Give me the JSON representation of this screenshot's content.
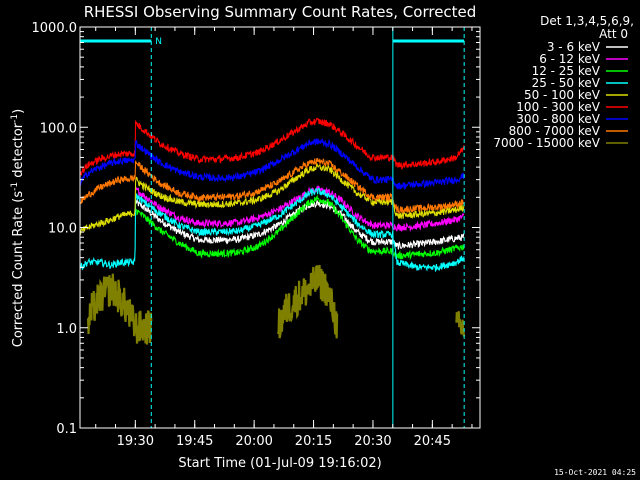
{
  "chart_data": {
    "type": "line",
    "title": "RHESSI Observing Summary Count Rates, Corrected",
    "xlabel": "Start Time (01-Jul-09 19:16:02)",
    "ylabel_main": "Corrected Count Rate (s",
    "ylabel_sup1": "-1",
    "ylabel_mid": " detector",
    "ylabel_sup2": "-1",
    "ylabel_end": ")",
    "yscale": "log",
    "ylim": [
      0.1,
      1000
    ],
    "xlim_minutes": [
      0,
      101
    ],
    "x_unit": "minutes since 19:16:02",
    "yticks": [
      {
        "v": 1000,
        "label": "1000.0"
      },
      {
        "v": 100,
        "label": "100.0"
      },
      {
        "v": 10,
        "label": "10.0"
      },
      {
        "v": 1,
        "label": "1.0"
      },
      {
        "v": 0.1,
        "label": "0.1"
      }
    ],
    "xticks": [
      {
        "m": 13.97,
        "label": "19:30"
      },
      {
        "m": 28.97,
        "label": "19:45"
      },
      {
        "m": 43.97,
        "label": "20:00"
      },
      {
        "m": 58.97,
        "label": "20:15"
      },
      {
        "m": 73.97,
        "label": "20:30"
      },
      {
        "m": 88.97,
        "label": "20:45"
      }
    ],
    "legend_title_1": "Det 1,3,4,5,6,9,",
    "legend_title_2": "Att 0",
    "legend_placement": "right",
    "grid": false,
    "flag_label": "N",
    "flags": [
      {
        "name": "N",
        "start": 0,
        "end": 18,
        "color": "#00ffff"
      },
      {
        "name": "",
        "start": 79,
        "end": 97,
        "color": "#00ffff"
      }
    ],
    "vlines_dashed": [
      18,
      97
    ],
    "vlines_solid": [
      0,
      79
    ],
    "series": [
      {
        "name": "3 - 6 keV",
        "color": "#ffffff",
        "x": [
          0,
          5,
          10,
          13.9,
          14,
          16,
          20,
          25,
          30,
          35,
          40,
          45,
          50,
          55,
          58,
          60,
          63,
          66,
          70,
          73,
          74,
          79,
          80,
          85,
          90,
          95,
          97,
          99
        ],
        "y": [
          null,
          null,
          null,
          null,
          18,
          16,
          12,
          9,
          7.5,
          7.5,
          7.6,
          8.5,
          10.5,
          14.5,
          17,
          17.5,
          16.5,
          13.5,
          9,
          7.5,
          7.2,
          7.2,
          6.5,
          6.8,
          7.2,
          7.8,
          8,
          null
        ]
      },
      {
        "name": "6 - 12 keV",
        "color": "#ff00ff",
        "x": [
          0,
          5,
          10,
          13.9,
          14,
          16,
          20,
          25,
          30,
          35,
          40,
          45,
          50,
          55,
          58,
          60,
          63,
          66,
          70,
          73,
          74,
          79,
          80,
          85,
          90,
          95,
          97,
          99
        ],
        "y": [
          null,
          null,
          null,
          null,
          24,
          21,
          16,
          12.5,
          11,
          11,
          11.2,
          12.5,
          15,
          19.5,
          23,
          24,
          22.5,
          18.5,
          13,
          11,
          10.5,
          10.5,
          10,
          10.3,
          11,
          12,
          13,
          null
        ]
      },
      {
        "name": "12 - 25 keV",
        "color": "#00ff00",
        "x": [
          0,
          5,
          10,
          13.9,
          14,
          16,
          20,
          25,
          30,
          35,
          40,
          45,
          50,
          55,
          58,
          60,
          63,
          66,
          70,
          73,
          74,
          79,
          80,
          85,
          90,
          95,
          97,
          99
        ],
        "y": [
          null,
          null,
          null,
          null,
          15,
          13,
          9.5,
          7,
          5.5,
          5.5,
          5.6,
          6.5,
          9,
          14,
          18,
          19.5,
          17.5,
          12.5,
          7.5,
          6,
          5.8,
          5.8,
          5.2,
          5.4,
          5.6,
          6.2,
          6.5,
          null
        ]
      },
      {
        "name": "25 - 50 keV",
        "color": "#00ffff",
        "x": [
          0,
          2,
          5,
          8,
          10,
          13.9,
          14,
          16,
          20,
          25,
          30,
          35,
          40,
          45,
          50,
          55,
          58,
          60,
          63,
          66,
          70,
          73,
          74,
          79,
          80,
          85,
          90,
          95,
          97,
          99
        ],
        "y": [
          4,
          4.5,
          4.5,
          4.2,
          4.5,
          4.5,
          21,
          18,
          14,
          10.5,
          9,
          9,
          9.2,
          10.5,
          13,
          18,
          22,
          23,
          21,
          16,
          11,
          9,
          8.5,
          8.5,
          4.5,
          4,
          4,
          4.5,
          5,
          null
        ]
      },
      {
        "name": "50 - 100 keV",
        "color": "#dddd00",
        "x": [
          0,
          2,
          5,
          8,
          10,
          13.9,
          14,
          16,
          20,
          25,
          30,
          35,
          40,
          45,
          50,
          55,
          58,
          60,
          63,
          66,
          70,
          73,
          74,
          79,
          80,
          85,
          90,
          95,
          97,
          99
        ],
        "y": [
          9,
          10,
          11,
          12,
          13,
          14,
          30,
          26,
          21,
          18,
          17,
          17,
          17.5,
          19,
          23,
          32,
          38,
          40,
          38,
          30,
          22,
          19,
          18,
          18,
          13,
          13.5,
          14,
          15,
          16,
          null
        ]
      },
      {
        "name": "100 - 300 keV",
        "color": "#ff0000",
        "x": [
          0,
          2,
          5,
          8,
          10,
          13.9,
          14,
          16,
          20,
          25,
          30,
          35,
          40,
          45,
          50,
          55,
          58,
          60,
          63,
          66,
          70,
          73,
          74,
          79,
          80,
          85,
          90,
          95,
          97,
          99
        ],
        "y": [
          35,
          42,
          48,
          52,
          54,
          55,
          110,
          95,
          70,
          55,
          48,
          48,
          50,
          56,
          72,
          95,
          112,
          115,
          108,
          88,
          65,
          52,
          50,
          50,
          42,
          43,
          45,
          50,
          62,
          null
        ]
      },
      {
        "name": "300 - 800 keV",
        "color": "#0000ff",
        "x": [
          0,
          2,
          5,
          8,
          10,
          13.9,
          14,
          16,
          20,
          25,
          30,
          35,
          40,
          45,
          50,
          55,
          58,
          60,
          63,
          66,
          70,
          73,
          74,
          79,
          80,
          85,
          90,
          95,
          97,
          99
        ],
        "y": [
          28,
          35,
          40,
          44,
          46,
          47,
          70,
          60,
          45,
          36,
          32,
          31,
          32,
          36,
          46,
          60,
          70,
          72,
          68,
          55,
          40,
          32,
          30,
          30,
          26,
          27,
          28,
          30,
          33,
          null
        ]
      },
      {
        "name": "800 - 7000 keV",
        "color": "#ff7700",
        "x": [
          0,
          2,
          5,
          8,
          10,
          13.9,
          14,
          16,
          20,
          25,
          30,
          35,
          40,
          45,
          50,
          55,
          58,
          60,
          63,
          66,
          70,
          73,
          74,
          79,
          80,
          85,
          90,
          95,
          97,
          99
        ],
        "y": [
          18,
          21,
          25,
          28,
          30,
          31,
          45,
          38,
          28,
          22,
          20,
          20,
          20.5,
          23,
          28,
          38,
          44,
          46,
          43,
          35,
          26,
          21,
          20,
          20,
          15,
          15.5,
          16,
          17,
          18,
          null
        ]
      },
      {
        "name": "7000 - 15000 keV",
        "color": "#808000",
        "x": [
          0,
          2,
          3,
          5,
          8,
          10,
          12,
          14,
          16,
          18,
          20,
          25,
          30,
          45,
          48,
          50,
          52,
          55,
          58,
          60,
          62,
          64,
          65,
          66,
          70,
          80,
          90,
          95,
          97,
          99
        ],
        "y": [
          null,
          1,
          1.5,
          2,
          2.5,
          2,
          1.5,
          1,
          1,
          1,
          null,
          null,
          null,
          null,
          null,
          1,
          1.5,
          2,
          2.5,
          3,
          2.5,
          1.5,
          1,
          null,
          null,
          null,
          null,
          1,
          1,
          null
        ]
      }
    ],
    "footer_date": "15-Oct-2021 04:25"
  }
}
